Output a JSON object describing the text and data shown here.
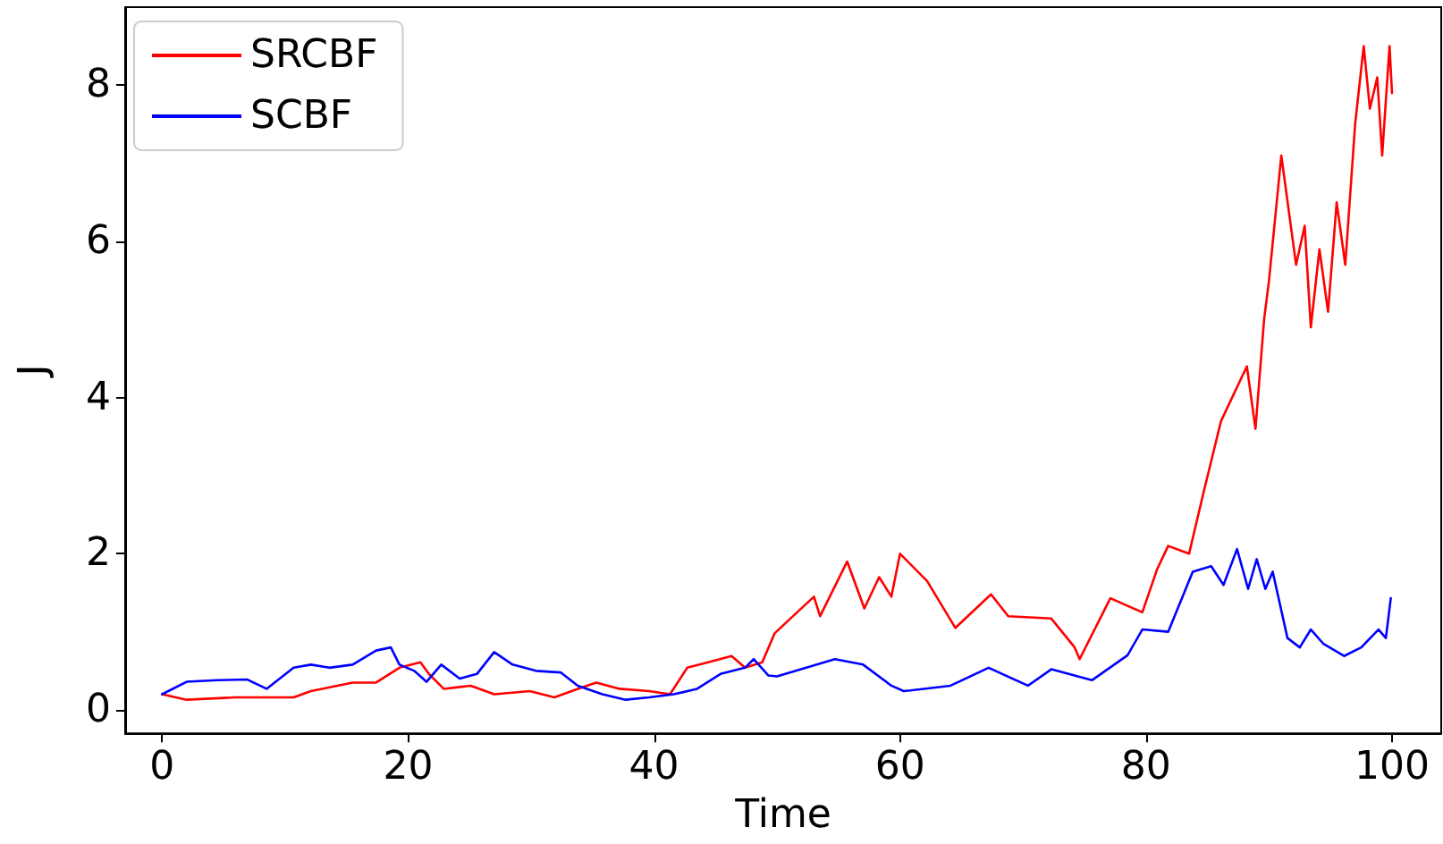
{
  "chart_data": {
    "type": "line",
    "xlabel": "Time",
    "ylabel": "J",
    "xlim": [
      -3,
      104
    ],
    "ylim": [
      -0.3,
      9
    ],
    "xticks": [
      0,
      20,
      40,
      60,
      80,
      100
    ],
    "yticks": [
      0,
      2,
      4,
      6,
      8
    ],
    "grid": false,
    "legend": "top left",
    "marker": "none",
    "line_style": "solid",
    "series": [
      {
        "name": "SRCBF",
        "color": "#ff0000",
        "x": [
          0,
          2,
          5.9,
          10.7,
          12.1,
          15.5,
          17.4,
          19.3,
          21,
          21.7,
          22.9,
          25.1,
          27,
          29.9,
          31.9,
          33.8,
          35.3,
          37.2,
          39.6,
          41.3,
          42.7,
          44.4,
          46.3,
          47.4,
          48.8,
          49.8,
          53,
          53.5,
          55.7,
          57.1,
          58.3,
          59.3,
          60,
          62.2,
          64.5,
          67.4,
          68.8,
          72.3,
          74.2,
          74.6,
          77.1,
          79.7,
          80.9,
          81.8,
          83.5,
          84.7,
          86.1,
          88.2,
          88.9,
          89.6,
          90,
          91,
          92.2,
          92.9,
          93.4,
          94.1,
          94.8,
          95.5,
          96.2,
          97,
          97.7,
          98.2,
          98.8,
          99.2,
          99.8,
          100
        ],
        "values": [
          0.2,
          0.13,
          0.16,
          0.16,
          0.24,
          0.35,
          0.35,
          0.54,
          0.61,
          0.46,
          0.27,
          0.31,
          0.2,
          0.24,
          0.16,
          0.27,
          0.35,
          0.27,
          0.24,
          0.2,
          0.54,
          0.61,
          0.69,
          0.54,
          0.61,
          0.98,
          1.45,
          1.2,
          1.9,
          1.3,
          1.7,
          1.45,
          2.0,
          1.65,
          1.05,
          1.48,
          1.2,
          1.17,
          0.8,
          0.65,
          1.43,
          1.25,
          1.8,
          2.1,
          2.0,
          2.8,
          3.7,
          4.4,
          3.6,
          5.0,
          5.5,
          7.1,
          5.7,
          6.2,
          4.9,
          5.9,
          5.1,
          6.5,
          5.7,
          7.5,
          8.5,
          7.7,
          8.1,
          7.1,
          8.5,
          7.9
        ]
      },
      {
        "name": "SCBF",
        "color": "#0000ff",
        "x": [
          0,
          2,
          4.5,
          6.9,
          8.5,
          10.7,
          12.1,
          13.6,
          15.5,
          17.4,
          18.6,
          19.3,
          20.5,
          21.5,
          22.7,
          24.2,
          25.6,
          27,
          28.5,
          30.4,
          32.4,
          33.8,
          35.8,
          37.7,
          39.6,
          41.6,
          43.5,
          45.4,
          47.4,
          48.1,
          49.3,
          50,
          54.7,
          57,
          59.3,
          60.3,
          64.1,
          67.2,
          70.4,
          72.3,
          75.6,
          78.5,
          79.7,
          81.8,
          83.8,
          85.3,
          86.3,
          87.4,
          88.3,
          89,
          89.7,
          90.3,
          91.5,
          92.5,
          93.4,
          94.4,
          96.1,
          97.5,
          98.9,
          99.5,
          99.9
        ],
        "values": [
          0.2,
          0.36,
          0.38,
          0.39,
          0.27,
          0.54,
          0.58,
          0.54,
          0.58,
          0.76,
          0.8,
          0.58,
          0.5,
          0.36,
          0.58,
          0.4,
          0.46,
          0.74,
          0.58,
          0.5,
          0.48,
          0.31,
          0.2,
          0.13,
          0.16,
          0.2,
          0.27,
          0.46,
          0.54,
          0.65,
          0.44,
          0.43,
          0.65,
          0.58,
          0.31,
          0.24,
          0.31,
          0.54,
          0.31,
          0.52,
          0.38,
          0.7,
          1.03,
          1.0,
          1.77,
          1.84,
          1.6,
          2.06,
          1.55,
          1.93,
          1.55,
          1.77,
          0.92,
          0.8,
          1.03,
          0.85,
          0.69,
          0.8,
          1.03,
          0.92,
          1.43
        ]
      }
    ]
  }
}
